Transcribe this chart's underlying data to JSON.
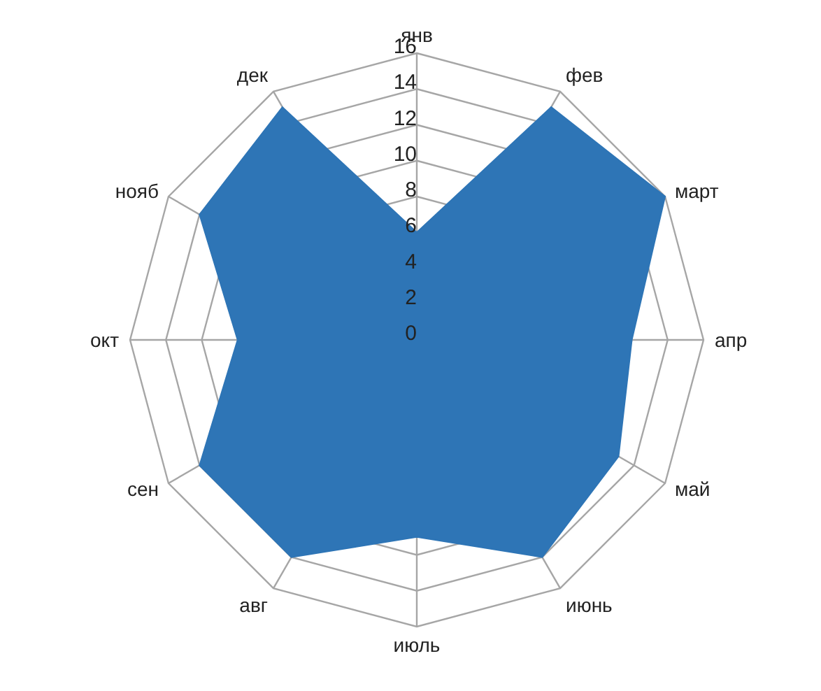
{
  "chart_data": {
    "type": "radar",
    "categories": [
      "янв",
      "фев",
      "март",
      "апр",
      "май",
      "июнь",
      "июль",
      "авг",
      "сен",
      "окт",
      "нояб",
      "дек"
    ],
    "series": [
      {
        "color": "#2e75b6",
        "values": [
          6,
          15,
          16,
          12,
          13,
          14,
          11,
          14,
          14,
          10,
          14,
          15
        ]
      }
    ],
    "ylim": [
      0,
      16
    ],
    "yticks": [
      0,
      2,
      4,
      6,
      8,
      10,
      12,
      14,
      16
    ],
    "grid": true
  }
}
